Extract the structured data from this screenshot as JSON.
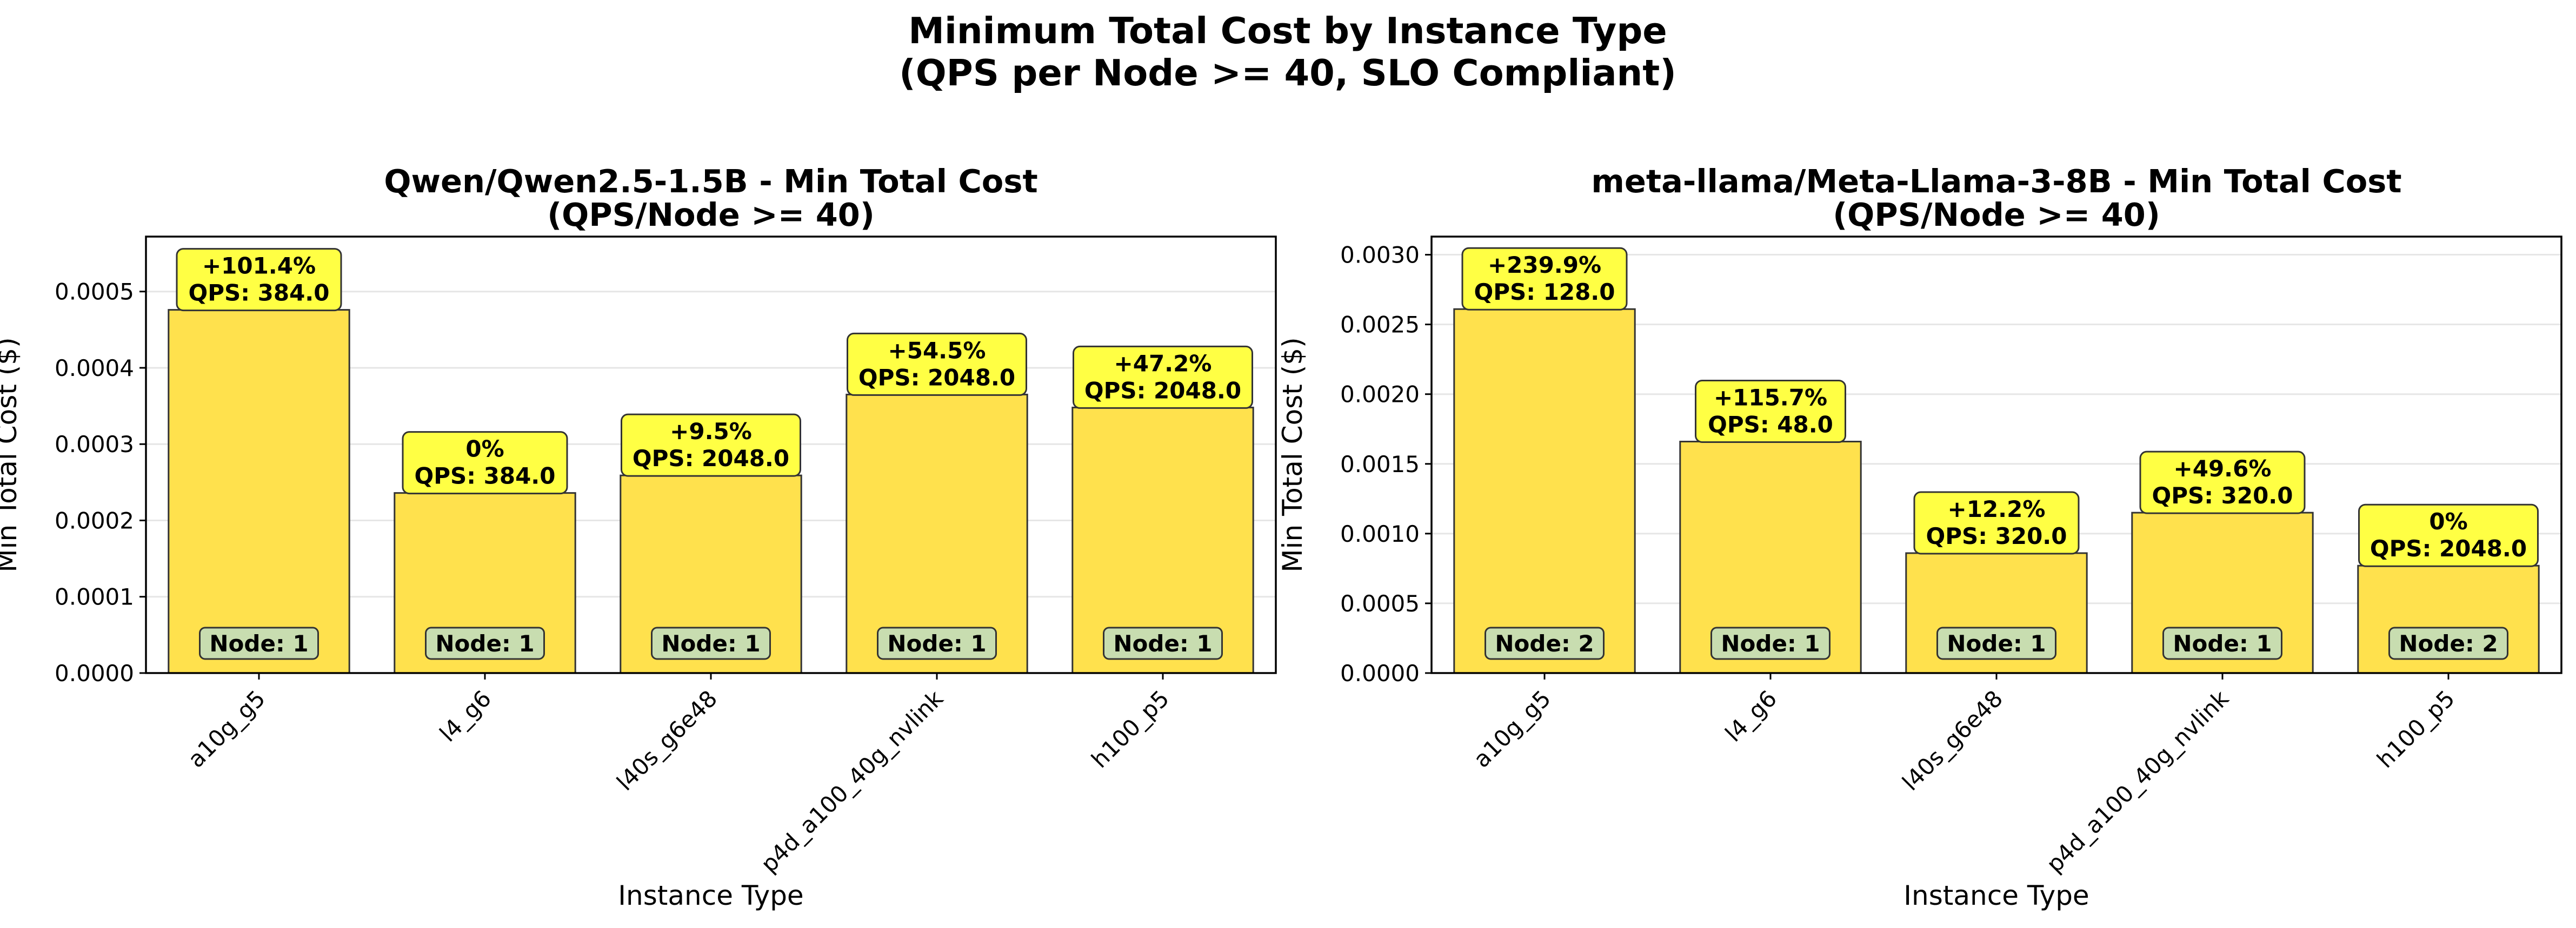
{
  "figure": {
    "suptitle_line1": "Minimum Total Cost by Instance Type",
    "suptitle_line2": "(QPS per Node >= 40, SLO Compliant)"
  },
  "colors": {
    "bar_fill": "#FFE14D",
    "bar_edge": "#333333",
    "annot_fill": "#FFFF44",
    "node_fill": "#C8DDB0",
    "grid": "#E6E6E6"
  },
  "chart_data": [
    {
      "type": "bar",
      "title_line1": "Qwen/Qwen2.5-1.5B - Min Total Cost",
      "title_line2": "(QPS/Node >= 40)",
      "xlabel": "Instance Type",
      "ylabel": "Min Total Cost ($)",
      "ylim": [
        0,
        0.000572
      ],
      "yticks": [
        0,
        0.0001,
        0.0002,
        0.0003,
        0.0004,
        0.0005
      ],
      "ytick_labels": [
        "0.0000",
        "0.0001",
        "0.0002",
        "0.0003",
        "0.0004",
        "0.0005"
      ],
      "grid": true,
      "categories": [
        "a10g_g5",
        "l4_g6",
        "l40s_g6e48",
        "p4d_a100_40g_nvlink",
        "h100_p5"
      ],
      "values": [
        0.000476,
        0.000236,
        0.000259,
        0.000365,
        0.000348
      ],
      "annotations": [
        {
          "pct": "+101.4%",
          "qps": "QPS: 384.0"
        },
        {
          "pct": "0%",
          "qps": "QPS: 384.0"
        },
        {
          "pct": "+9.5%",
          "qps": "QPS: 2048.0"
        },
        {
          "pct": "+54.5%",
          "qps": "QPS: 2048.0"
        },
        {
          "pct": "+47.2%",
          "qps": "QPS: 2048.0"
        }
      ],
      "node_labels": [
        "Node: 1",
        "Node: 1",
        "Node: 1",
        "Node: 1",
        "Node: 1"
      ]
    },
    {
      "type": "bar",
      "title_line1": "meta-llama/Meta-Llama-3-8B - Min Total Cost",
      "title_line2": "(QPS/Node >= 40)",
      "xlabel": "Instance Type",
      "ylabel": "Min Total Cost ($)",
      "ylim": [
        0,
        0.00313
      ],
      "yticks": [
        0,
        0.0005,
        0.001,
        0.0015,
        0.002,
        0.0025,
        0.003
      ],
      "ytick_labels": [
        "0.0000",
        "0.0005",
        "0.0010",
        "0.0015",
        "0.0020",
        "0.0025",
        "0.0030"
      ],
      "grid": true,
      "categories": [
        "a10g_g5",
        "l4_g6",
        "l40s_g6e48",
        "p4d_a100_40g_nvlink",
        "h100_p5"
      ],
      "values": [
        0.00261,
        0.00166,
        0.00086,
        0.00115,
        0.00077
      ],
      "annotations": [
        {
          "pct": "+239.9%",
          "qps": "QPS: 128.0"
        },
        {
          "pct": "+115.7%",
          "qps": "QPS: 48.0"
        },
        {
          "pct": "+12.2%",
          "qps": "QPS: 320.0"
        },
        {
          "pct": "+49.6%",
          "qps": "QPS: 320.0"
        },
        {
          "pct": "0%",
          "qps": "QPS: 2048.0"
        }
      ],
      "node_labels": [
        "Node: 2",
        "Node: 1",
        "Node: 1",
        "Node: 1",
        "Node: 2"
      ]
    }
  ]
}
